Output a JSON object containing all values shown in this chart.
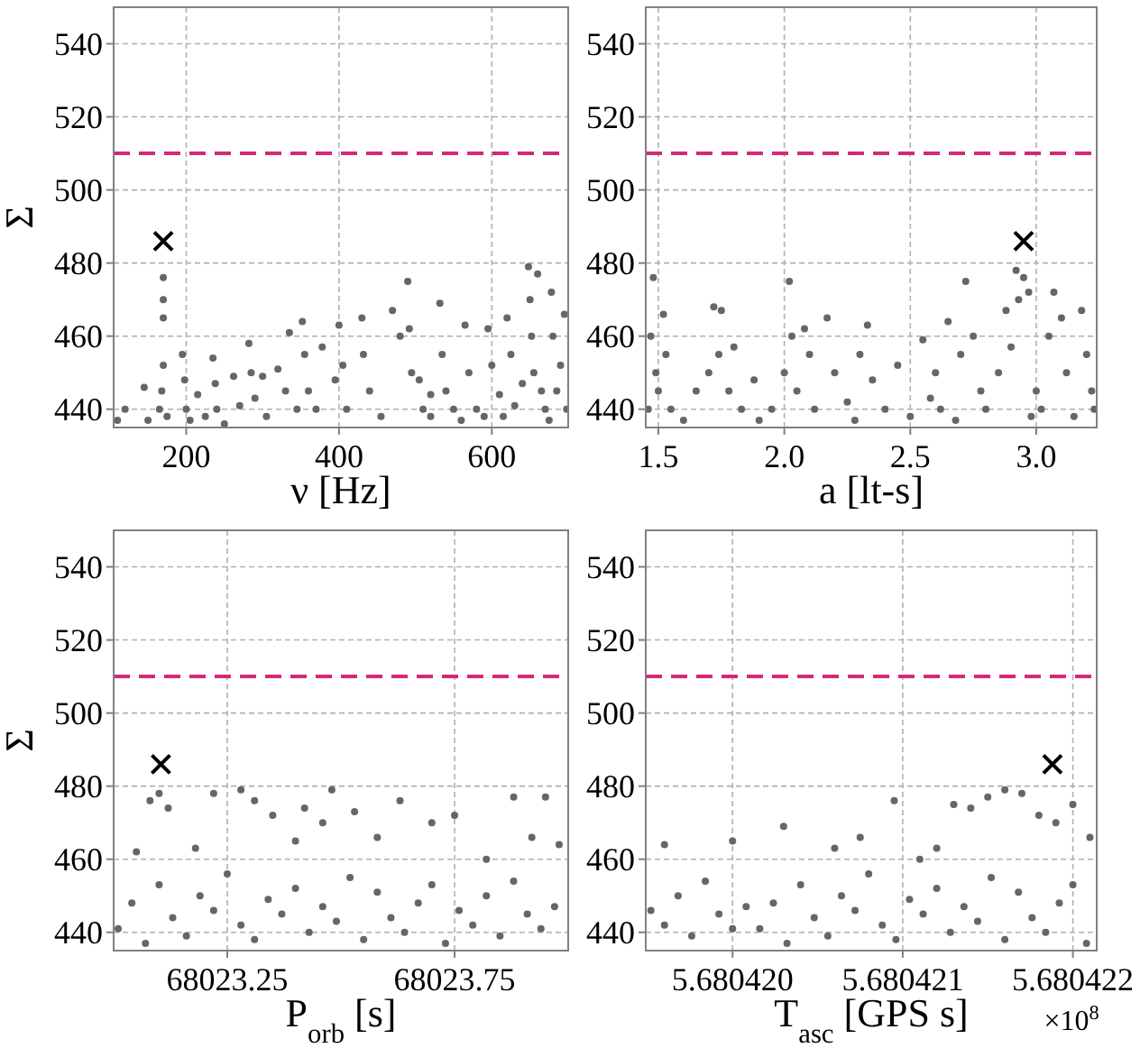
{
  "chart_data": [
    {
      "type": "scatter",
      "xlabel": "ν [Hz]",
      "ylabel": "Σ",
      "xlim": [
        105,
        700
      ],
      "ylim": [
        435,
        550
      ],
      "xticks": [
        200,
        400,
        600
      ],
      "yticks": [
        440,
        460,
        480,
        500,
        520,
        540
      ],
      "grid": true,
      "marker": "circle",
      "ref_lines": [
        {
          "axis": "y",
          "value": 510,
          "color": "#d6277a",
          "line_style": "dashed"
        }
      ],
      "series": [
        {
          "color": "#666666",
          "x": [
            110,
            120,
            145,
            150,
            165,
            170,
            170,
            170,
            170,
            168,
            175,
            195,
            198,
            200,
            205,
            215,
            225,
            235,
            238,
            240,
            250,
            262,
            270,
            282,
            285,
            290,
            300,
            305,
            320,
            330,
            335,
            345,
            352,
            355,
            360,
            370,
            378,
            395,
            400,
            405,
            410,
            430,
            432,
            440,
            455,
            470,
            480,
            490,
            492,
            495,
            505,
            510,
            520,
            532,
            535,
            540,
            550,
            565,
            570,
            580,
            595,
            600,
            610,
            620,
            625,
            630,
            640,
            648,
            650,
            652,
            655,
            660,
            665,
            670,
            678,
            680,
            685,
            690,
            695,
            698,
            520,
            560,
            590,
            615,
            675
          ],
          "values": [
            437,
            440,
            446,
            437,
            440,
            476,
            470,
            465,
            452,
            445,
            438,
            455,
            448,
            440,
            437,
            444,
            438,
            454,
            447,
            440,
            436,
            449,
            441,
            458,
            450,
            443,
            449,
            438,
            451,
            445,
            461,
            440,
            464,
            455,
            445,
            440,
            457,
            448,
            463,
            452,
            440,
            465,
            455,
            445,
            438,
            467,
            460,
            475,
            462,
            450,
            448,
            440,
            438,
            469,
            455,
            445,
            440,
            463,
            450,
            440,
            462,
            452,
            444,
            465,
            455,
            441,
            447,
            479,
            470,
            460,
            450,
            477,
            445,
            440,
            472,
            460,
            445,
            452,
            466,
            440,
            444,
            437,
            438,
            438,
            437
          ]
        },
        {
          "color": "#000000",
          "marker": "cross",
          "x": [
            170
          ],
          "values": [
            486
          ]
        }
      ]
    },
    {
      "type": "scatter",
      "xlabel": "a [lt-s]",
      "xlim": [
        1.45,
        3.24
      ],
      "ylim": [
        435,
        550
      ],
      "xticks": [
        {
          "value": 1.5,
          "label": "1.5"
        },
        {
          "value": 2,
          "label": "2.0"
        },
        {
          "value": 2.5,
          "label": "2.5"
        },
        {
          "value": 3,
          "label": "3.0"
        }
      ],
      "yticks": [
        440,
        460,
        480,
        500,
        520,
        540
      ],
      "grid": true,
      "marker": "circle",
      "ref_lines": [
        {
          "axis": "y",
          "value": 510,
          "color": "#d6277a",
          "line_style": "dashed"
        }
      ],
      "series": [
        {
          "color": "#666666",
          "x": [
            1.46,
            1.47,
            1.48,
            1.49,
            1.5,
            1.52,
            1.53,
            1.55,
            1.6,
            1.65,
            1.7,
            1.72,
            1.75,
            1.74,
            1.78,
            1.8,
            1.83,
            1.88,
            1.95,
            2.0,
            2.02,
            2.03,
            2.05,
            2.08,
            2.1,
            2.12,
            2.17,
            2.2,
            2.25,
            2.3,
            2.33,
            2.35,
            2.4,
            2.45,
            2.5,
            2.55,
            2.6,
            2.62,
            2.65,
            2.7,
            2.72,
            2.75,
            2.78,
            2.8,
            2.85,
            2.88,
            2.9,
            2.92,
            2.93,
            2.95,
            2.97,
            3.0,
            3.02,
            3.05,
            3.07,
            3.1,
            3.12,
            3.15,
            3.18,
            3.2,
            3.22,
            3.23,
            2.58,
            2.68,
            2.98,
            1.9,
            2.28
          ],
          "values": [
            440,
            460,
            476,
            450,
            445,
            466,
            455,
            440,
            437,
            445,
            450,
            468,
            467,
            455,
            445,
            457,
            440,
            448,
            440,
            450,
            475,
            460,
            445,
            462,
            455,
            440,
            465,
            450,
            442,
            455,
            463,
            448,
            440,
            452,
            438,
            459,
            450,
            440,
            464,
            455,
            475,
            460,
            445,
            440,
            450,
            467,
            457,
            478,
            470,
            476,
            472,
            445,
            440,
            460,
            472,
            465,
            450,
            438,
            467,
            455,
            445,
            440,
            443,
            437,
            438,
            437,
            437
          ]
        },
        {
          "color": "#000000",
          "marker": "cross",
          "x": [
            2.95
          ],
          "values": [
            486
          ]
        }
      ]
    },
    {
      "type": "scatter",
      "xlabel": "P$_{orb}$ [s]",
      "ylabel": "Σ",
      "xlim": [
        68023.0,
        68024.0
      ],
      "ylim": [
        435,
        550
      ],
      "xticks": [
        {
          "value": 68023.25,
          "label": "68023.25"
        },
        {
          "value": 68023.75,
          "label": "68023.75"
        }
      ],
      "yticks": [
        440,
        460,
        480,
        500,
        520,
        540
      ],
      "grid": true,
      "marker": "circle",
      "ref_lines": [
        {
          "axis": "y",
          "value": 510,
          "color": "#d6277a",
          "line_style": "dashed"
        }
      ],
      "series": [
        {
          "color": "#666666",
          "x": [
            68023.1,
            68023.08,
            68023.12,
            68023.22,
            68023.28,
            68023.31,
            68023.35,
            68023.42,
            68023.48,
            68023.46,
            68023.53,
            68023.63,
            68023.7,
            68023.75,
            68023.88,
            68023.95,
            68023.92,
            68023.05,
            68023.18,
            68023.4,
            68023.58,
            68023.82,
            68023.98,
            68023.01,
            68023.04,
            68023.07,
            68023.1,
            68023.13,
            68023.16,
            68023.19,
            68023.22,
            68023.25,
            68023.28,
            68023.31,
            68023.34,
            68023.37,
            68023.4,
            68023.43,
            68023.46,
            68023.49,
            68023.52,
            68023.55,
            68023.58,
            68023.61,
            68023.64,
            68023.67,
            68023.7,
            68023.73,
            68023.76,
            68023.79,
            68023.82,
            68023.85,
            68023.88,
            68023.91,
            68023.94,
            68023.97
          ],
          "values": [
            478,
            476,
            474,
            478,
            479,
            476,
            472,
            474,
            479,
            470,
            473,
            476,
            470,
            472,
            477,
            477,
            466,
            462,
            463,
            465,
            466,
            460,
            464,
            441,
            448,
            437,
            453,
            444,
            439,
            450,
            446,
            456,
            442,
            438,
            449,
            445,
            452,
            440,
            447,
            443,
            455,
            438,
            451,
            444,
            440,
            448,
            453,
            437,
            446,
            442,
            450,
            439,
            454,
            445,
            441,
            447
          ]
        },
        {
          "color": "#000000",
          "marker": "cross",
          "x": [
            68023.104
          ],
          "values": [
            486
          ]
        }
      ]
    },
    {
      "type": "scatter",
      "xlabel": "T$_{asc}$ [GPS s]",
      "xlim": [
        5.68041949,
        5.68042214
      ],
      "ylim": [
        435,
        550
      ],
      "xticks": [
        {
          "value": 5.68042,
          "label": "5.680420"
        },
        {
          "value": 5.680421,
          "label": "5.680421"
        },
        {
          "value": 5.680422,
          "label": "5.680422"
        }
      ],
      "yticks": [
        440,
        460,
        480,
        500,
        520,
        540
      ],
      "grid": true,
      "marker": "circle",
      "annotations": [
        "×10$^{8}$"
      ],
      "ref_lines": [
        {
          "axis": "y",
          "value": 510,
          "color": "#d6277a",
          "line_style": "dashed"
        }
      ],
      "series": [
        {
          "color": "#666666",
          "x": [
            5.6804196,
            5.68042,
            5.6804203,
            5.6804206,
            5.68042075,
            5.68042095,
            5.6804213,
            5.6804214,
            5.6804215,
            5.6804216,
            5.6804217,
            5.6804218,
            5.6804219,
            5.680422,
            5.6804221,
            5.6804212,
            5.6804211,
            5.68041952,
            5.6804196,
            5.68041968,
            5.68041976,
            5.68041984,
            5.68041992,
            5.68042,
            5.68042008,
            5.68042016,
            5.68042024,
            5.68042032,
            5.6804204,
            5.68042048,
            5.68042056,
            5.68042064,
            5.68042072,
            5.6804208,
            5.68042088,
            5.68042096,
            5.68042104,
            5.68042112,
            5.6804212,
            5.68042128,
            5.68042136,
            5.68042144,
            5.68042152,
            5.6804216,
            5.68042168,
            5.68042176,
            5.68042184,
            5.68042192,
            5.680422,
            5.68042208
          ],
          "values": [
            464,
            465,
            469,
            463,
            466,
            476,
            475,
            474,
            477,
            479,
            478,
            472,
            470,
            475,
            466,
            463,
            460,
            446,
            442,
            450,
            439,
            454,
            445,
            441,
            447,
            441,
            448,
            437,
            453,
            444,
            439,
            450,
            446,
            456,
            442,
            438,
            449,
            445,
            452,
            440,
            447,
            443,
            455,
            438,
            451,
            444,
            440,
            448,
            453,
            437
          ]
        },
        {
          "color": "#000000",
          "marker": "cross",
          "x": [
            5.68042188
          ],
          "values": [
            486
          ]
        }
      ]
    }
  ]
}
